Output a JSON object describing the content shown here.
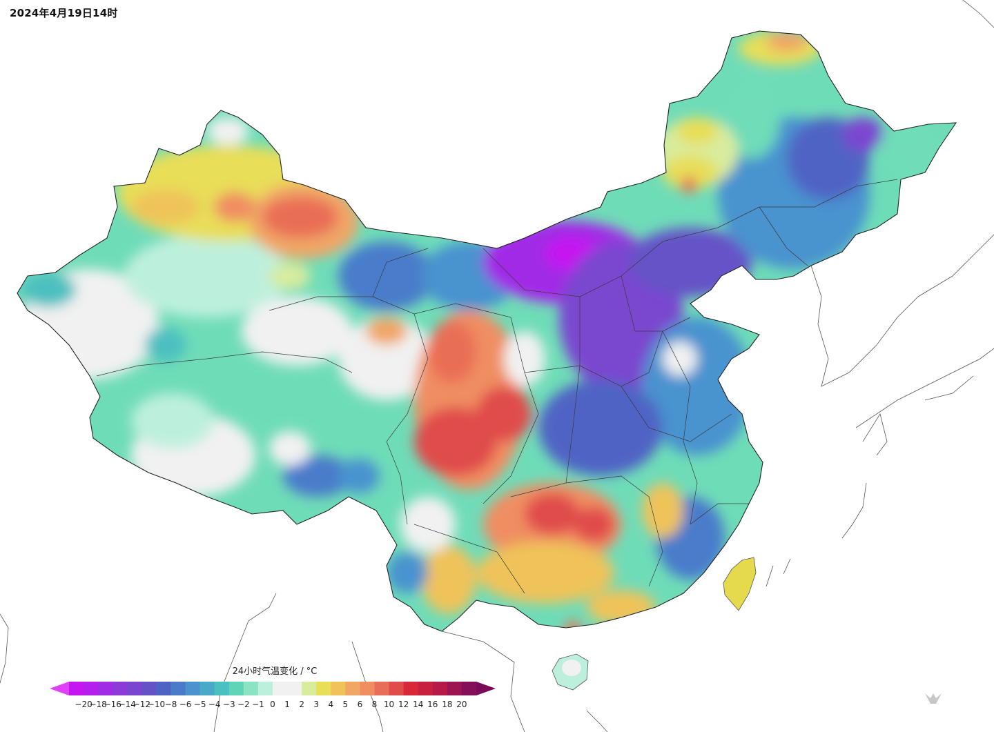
{
  "title": "2024年4月19日14时",
  "legend": {
    "title": "24小时气温变化 / °C",
    "low_arrow_color": "#e040fb",
    "high_arrow_color": "#7b0a5a",
    "bins": [
      {
        "color": "#c515f0"
      },
      {
        "color": "#b51fee"
      },
      {
        "color": "#a12ce6"
      },
      {
        "color": "#8c3ad8"
      },
      {
        "color": "#7a46cf"
      },
      {
        "color": "#6552c7"
      },
      {
        "color": "#4f63c4"
      },
      {
        "color": "#4a7bcb"
      },
      {
        "color": "#4a93cf"
      },
      {
        "color": "#49a9c9"
      },
      {
        "color": "#4bc0c0"
      },
      {
        "color": "#5fd5b8"
      },
      {
        "color": "#8be3c3"
      },
      {
        "color": "#bdf0dc"
      },
      {
        "color": "#f1f1f1"
      },
      {
        "color": "#f1f1f1"
      },
      {
        "color": "#d8ec9e"
      },
      {
        "color": "#e8de58"
      },
      {
        "color": "#efc35a"
      },
      {
        "color": "#f1a666"
      },
      {
        "color": "#f08e62"
      },
      {
        "color": "#e96e57"
      },
      {
        "color": "#e04b4b"
      },
      {
        "color": "#d9273a"
      },
      {
        "color": "#c8203f"
      },
      {
        "color": "#b51a48"
      },
      {
        "color": "#9c1452"
      },
      {
        "color": "#85105a"
      }
    ],
    "ticks": [
      {
        "label": "−20"
      },
      {
        "label": "−18"
      },
      {
        "label": "−16"
      },
      {
        "label": "−14"
      },
      {
        "label": "−12"
      },
      {
        "label": "−10"
      },
      {
        "label": "−8"
      },
      {
        "label": "−6"
      },
      {
        "label": "−5"
      },
      {
        "label": "−4"
      },
      {
        "label": "−3"
      },
      {
        "label": "−2"
      },
      {
        "label": "−1"
      },
      {
        "label": "0"
      },
      {
        "label": "1"
      },
      {
        "label": "2"
      },
      {
        "label": "3"
      },
      {
        "label": "4"
      },
      {
        "label": "5"
      },
      {
        "label": "6"
      },
      {
        "label": "8"
      },
      {
        "label": "10"
      },
      {
        "label": "12"
      },
      {
        "label": "14"
      },
      {
        "label": "16"
      },
      {
        "label": "18"
      },
      {
        "label": "20"
      }
    ]
  }
}
